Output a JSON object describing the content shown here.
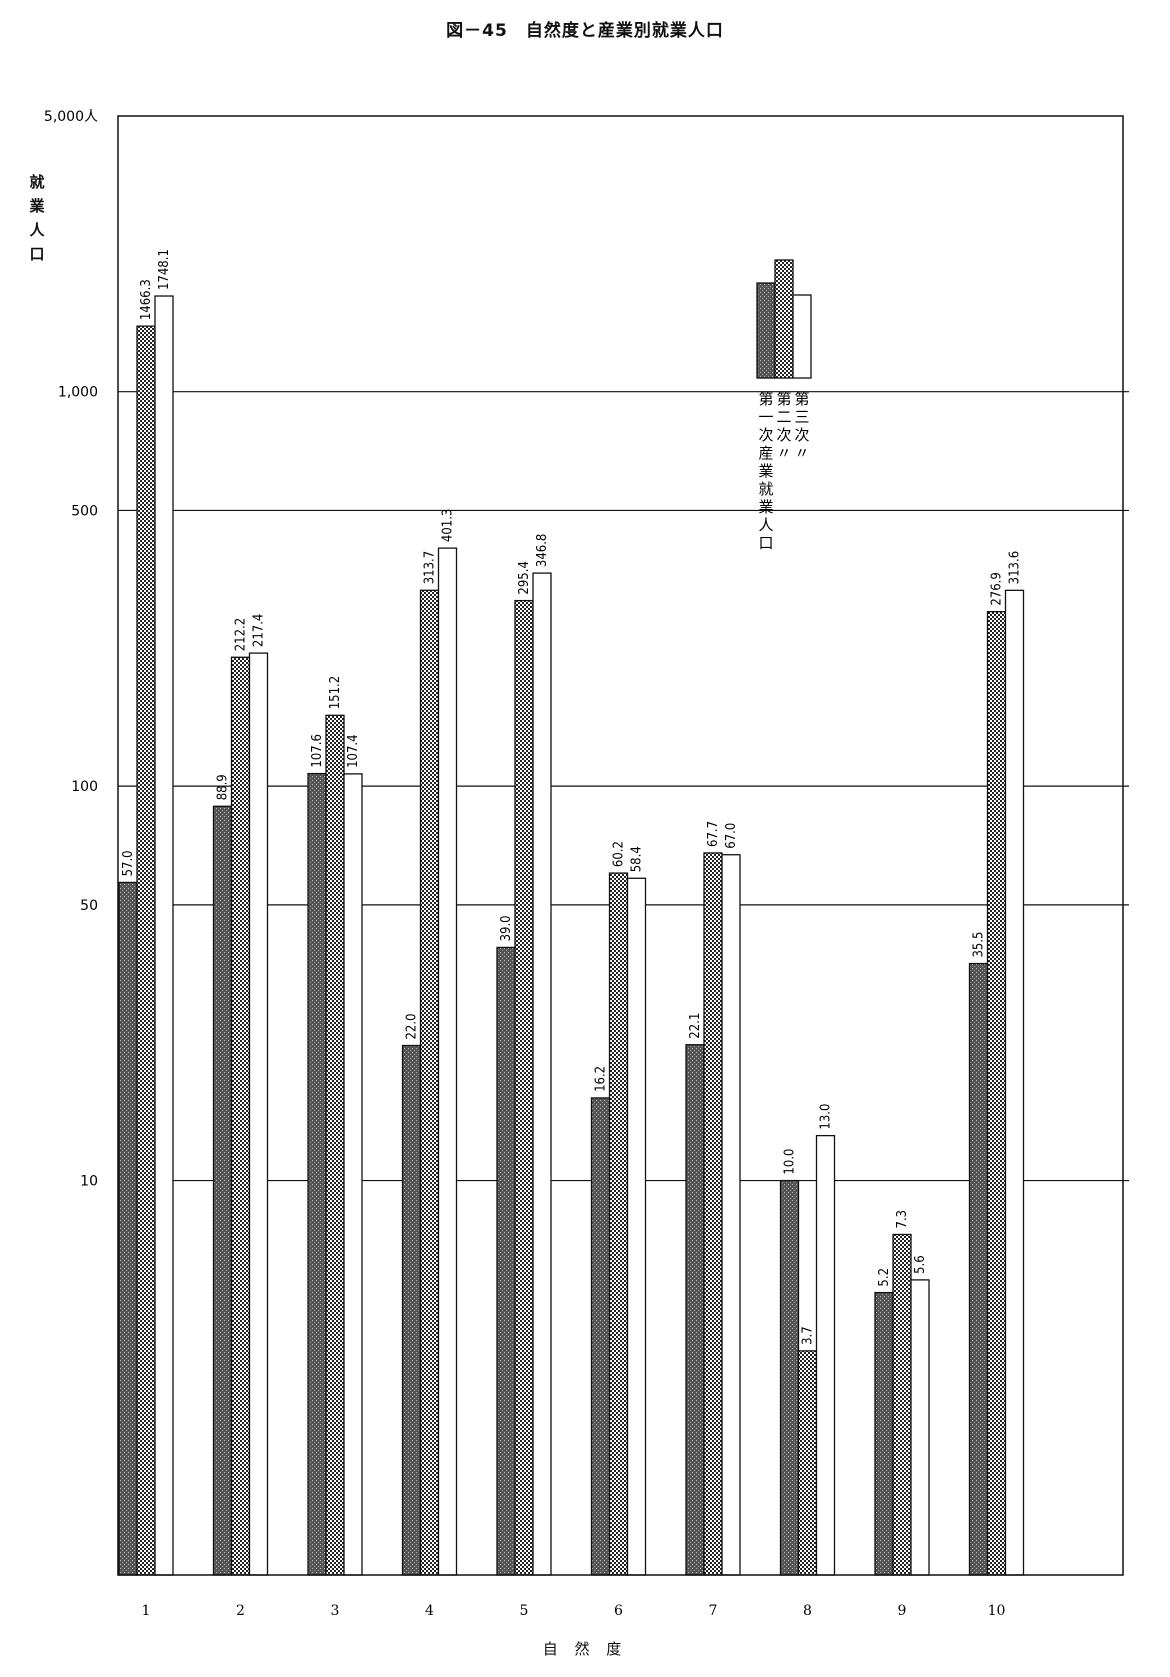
{
  "chart_data": {
    "type": "bar",
    "title": "図－45　自然度と産業別就業人口",
    "xlabel": "自 然 度",
    "ylabel": "就\n業\n人\n口",
    "yscale": "log",
    "ylim": [
      1,
      5000
    ],
    "yticks": [
      {
        "value": 10,
        "label": "10"
      },
      {
        "value": 50,
        "label": "50"
      },
      {
        "value": 100,
        "label": "100"
      },
      {
        "value": 500,
        "label": "500"
      },
      {
        "value": 1000,
        "label": "1,000"
      },
      {
        "value": 5000,
        "label": "5,000人"
      }
    ],
    "categories": [
      "1",
      "2",
      "3",
      "4",
      "5",
      "6",
      "7",
      "8",
      "9",
      "10"
    ],
    "series": [
      {
        "name": "第一次産業就業人口",
        "pattern": "dark",
        "values": [
          57.0,
          88.9,
          107.6,
          22.0,
          39.0,
          16.2,
          22.1,
          10.0,
          5.2,
          35.5
        ],
        "labels": [
          "57.0",
          "88.9",
          "107.6",
          "22.0",
          "39.0",
          "16.2",
          "22.1",
          "10.0",
          "5.2",
          "35.5"
        ]
      },
      {
        "name": "第二次〃",
        "pattern": "check",
        "values": [
          1466.3,
          212.2,
          151.2,
          313.7,
          295.4,
          60.2,
          67.7,
          3.7,
          7.3,
          276.9
        ],
        "labels": [
          "1466.3",
          "212.2",
          "151.2",
          "313.7",
          "295.4",
          "60.2",
          "67.7",
          "3.7",
          "7.3",
          "276.9"
        ]
      },
      {
        "name": "第三次〃",
        "pattern": "white",
        "values": [
          1748.1,
          217.4,
          107.4,
          401.3,
          346.8,
          58.4,
          67.0,
          13.0,
          5.6,
          313.6
        ],
        "labels": [
          "1748.1",
          "217.4",
          "107.4",
          "401.3",
          "346.8",
          "58.4",
          "67.0",
          "13.0",
          "5.6",
          "313.6"
        ]
      }
    ],
    "legend": {
      "position": "upper-right",
      "entries": [
        "第一次産業就業人口",
        "第二次〃",
        "第三次〃"
      ]
    },
    "grid": true
  }
}
